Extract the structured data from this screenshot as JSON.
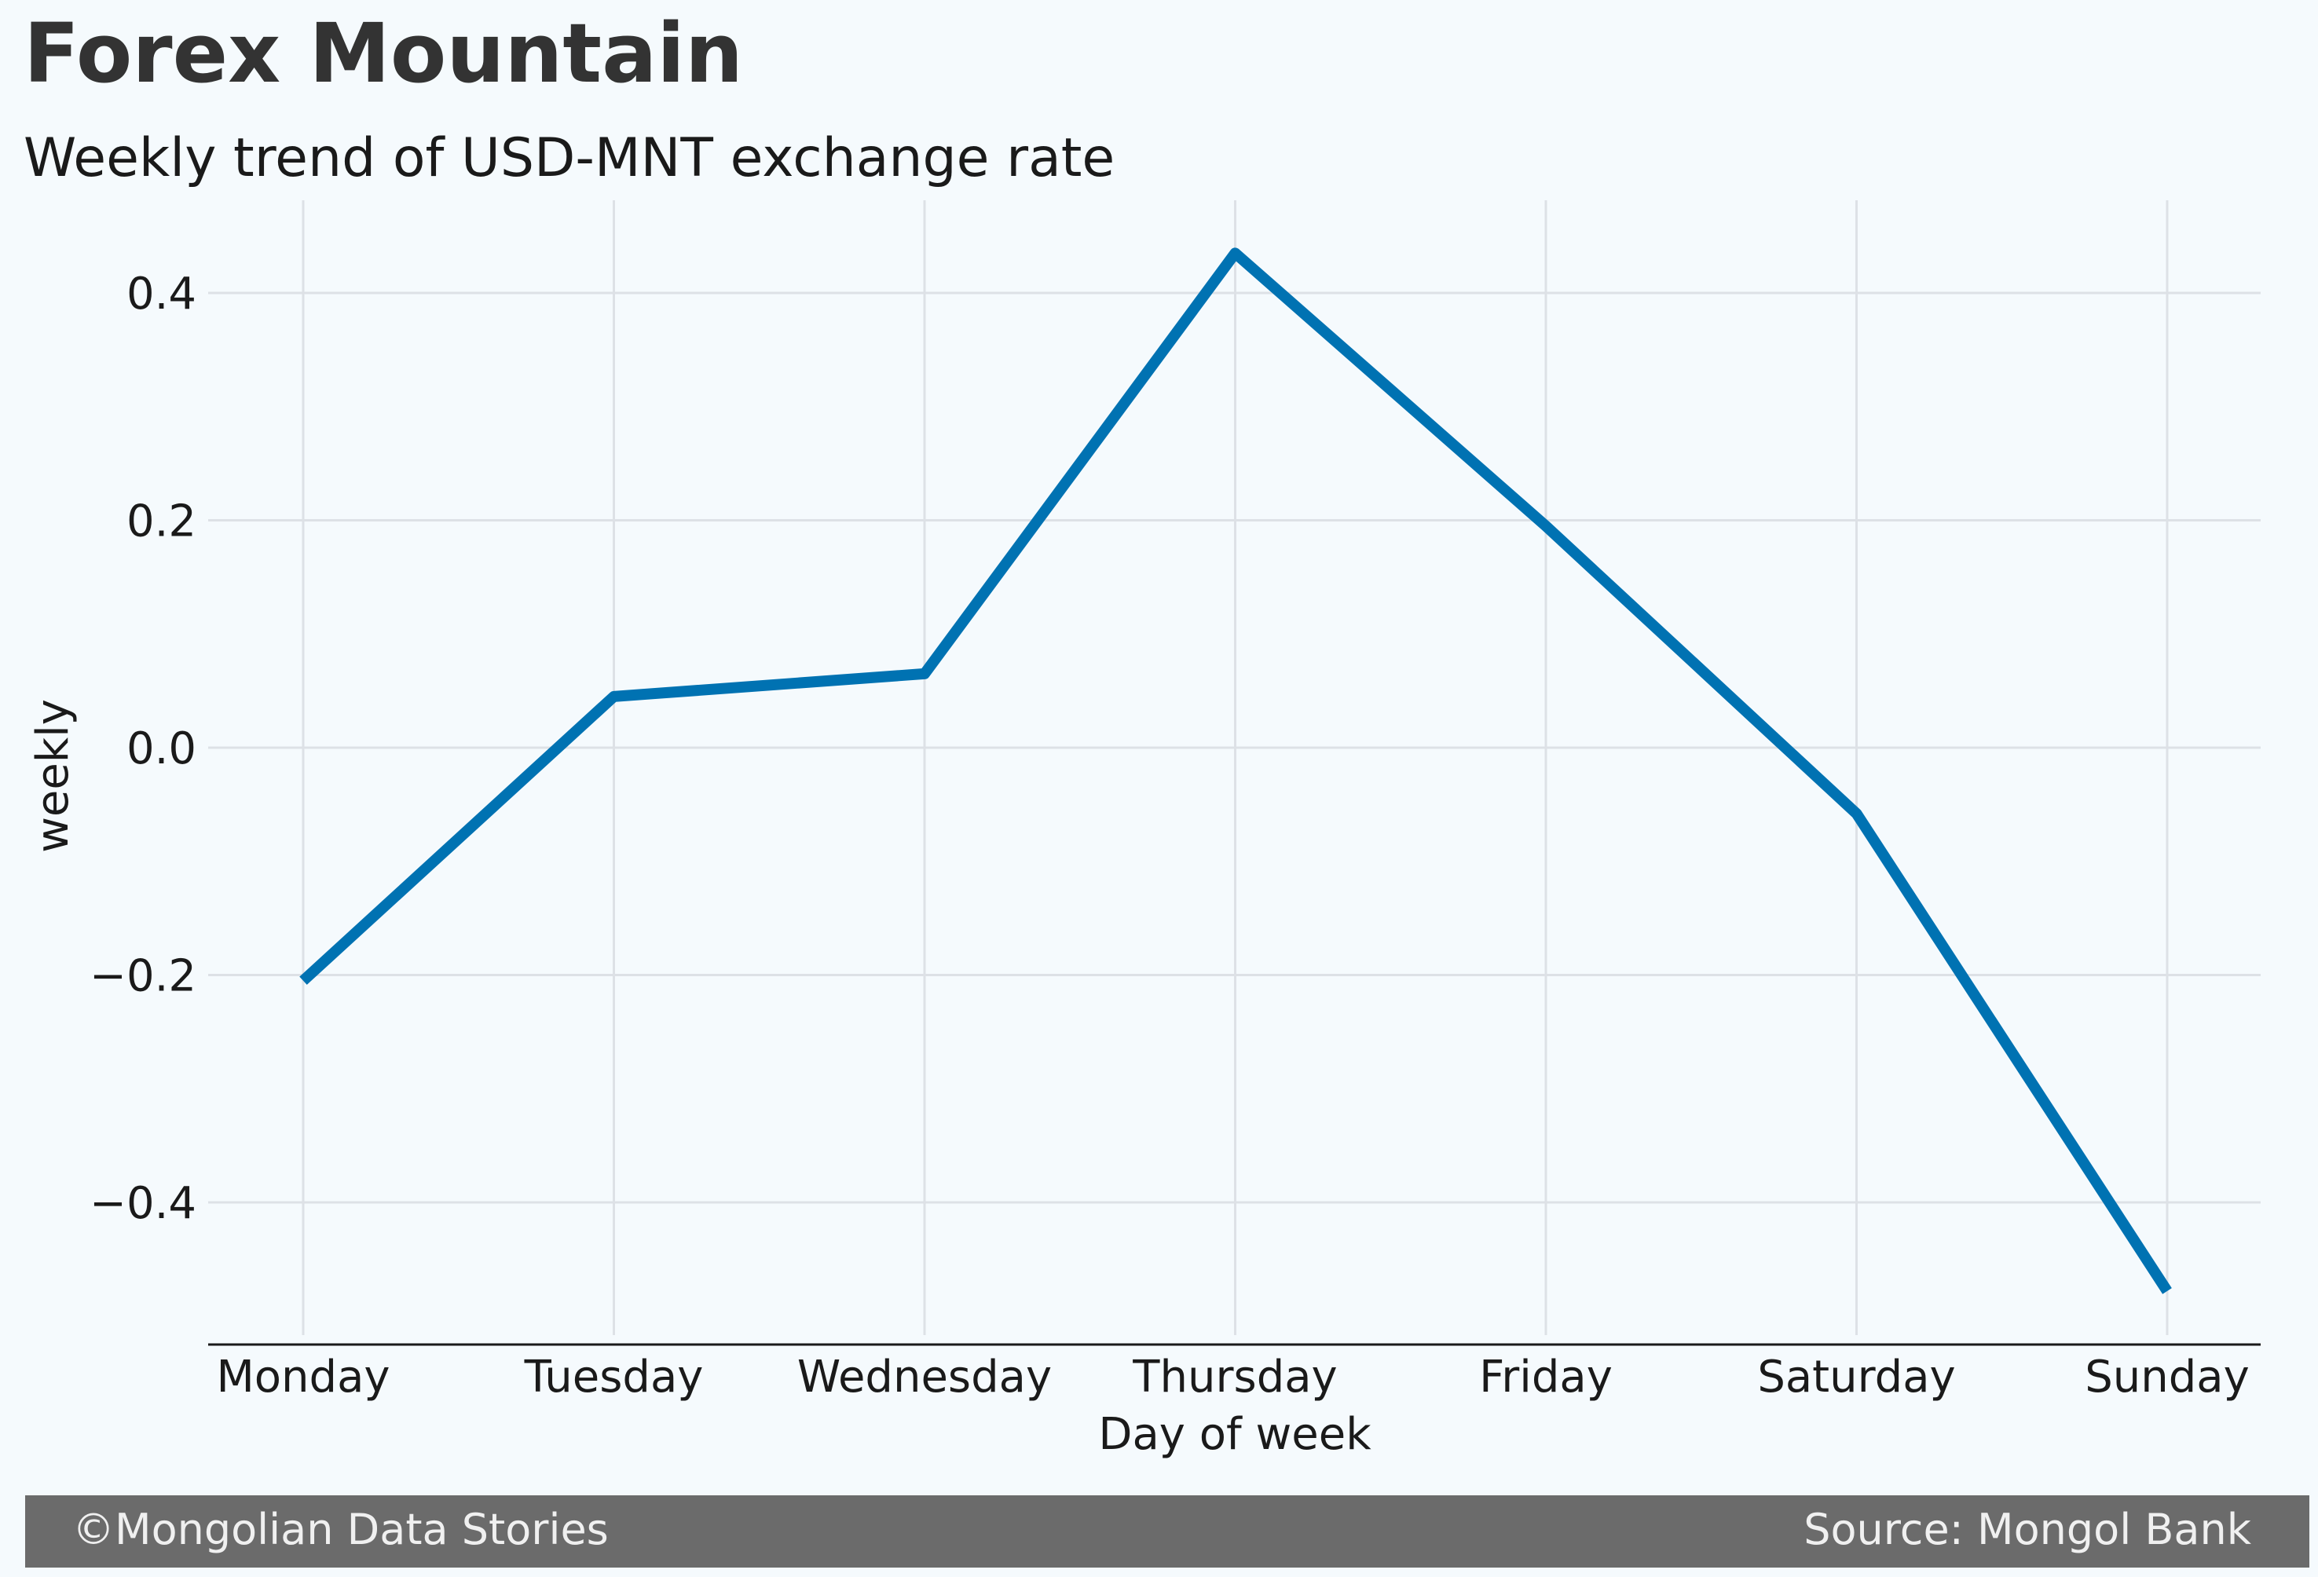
{
  "chart_data": {
    "type": "line",
    "title": "Forex Mountain",
    "subtitle": "Weekly trend of USD-MNT exchange rate",
    "xlabel": "Day of week",
    "ylabel": "weekly",
    "categories": [
      "Monday",
      "Tuesday",
      "Wednesday",
      "Thursday",
      "Friday",
      "Saturday",
      "Sunday"
    ],
    "series": [
      {
        "values": [
          -0.205,
          0.045,
          0.065,
          0.435,
          0.195,
          -0.058,
          -0.478
        ],
        "color": "#0072b2"
      }
    ],
    "yticks": [
      {
        "value": 0.4,
        "label": "0.4"
      },
      {
        "value": 0.2,
        "label": "0.2"
      },
      {
        "value": 0.0,
        "label": "0.0"
      },
      {
        "value": -0.2,
        "label": "−0.2"
      },
      {
        "value": -0.4,
        "label": "−0.4"
      }
    ],
    "ylim": [
      -0.52,
      0.48
    ],
    "grid": true,
    "legend": "none",
    "colors": {
      "background": "#f5fafd",
      "grid": "#dde1e6",
      "title": "#333333",
      "text": "#1a1a1a",
      "footer_bg": "#6b6b6b",
      "footer_text": "#f0f0f0"
    }
  },
  "footer": {
    "left": "©Mongolian Data Stories",
    "right": "Source: Mongol Bank"
  }
}
